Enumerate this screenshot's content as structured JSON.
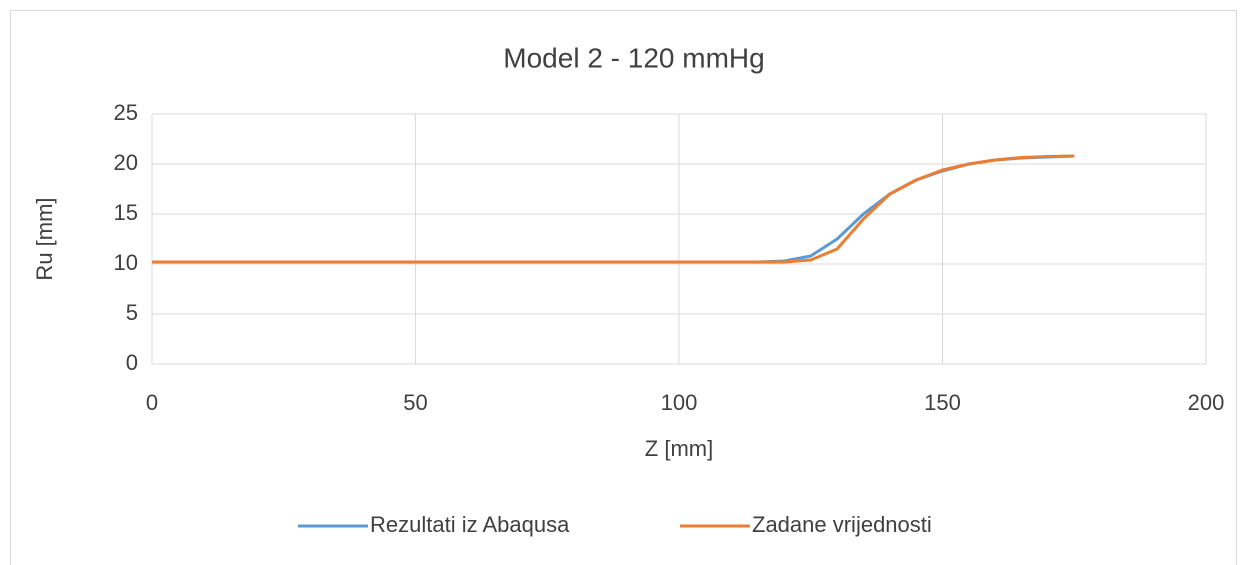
{
  "chart_data": {
    "type": "line",
    "title": "Model 2 - 120 mmHg",
    "x_label": "Z [mm]",
    "y_label": "Ru [mm]",
    "xlim": [
      0,
      200
    ],
    "xticks": [
      0,
      50,
      100,
      150,
      200
    ],
    "ylim": [
      0,
      25
    ],
    "yticks": [
      0,
      5,
      10,
      15,
      20,
      25
    ],
    "grid": true,
    "legend": "bottom",
    "series": [
      {
        "name": "Rezultati iz Abaqusa",
        "color": "#5b9bd5",
        "x": [
          0,
          50,
          100,
          115,
          120,
          125,
          130,
          135,
          140,
          145,
          150,
          155,
          160,
          165,
          170,
          175
        ],
        "values": [
          10.2,
          10.2,
          10.2,
          10.2,
          10.3,
          10.8,
          12.5,
          15,
          17,
          18.4,
          19.3,
          20,
          20.4,
          20.6,
          20.7,
          20.8
        ]
      },
      {
        "name": "Zadane vrijednosti",
        "color": "#ed7d31",
        "x": [
          0,
          50,
          100,
          115,
          120,
          125,
          130,
          135,
          140,
          145,
          150,
          155,
          160,
          165,
          170,
          175
        ],
        "values": [
          10.2,
          10.2,
          10.2,
          10.2,
          10.2,
          10.4,
          11.5,
          14.5,
          17,
          18.4,
          19.4,
          20,
          20.4,
          20.65,
          20.75,
          20.8
        ]
      }
    ]
  }
}
